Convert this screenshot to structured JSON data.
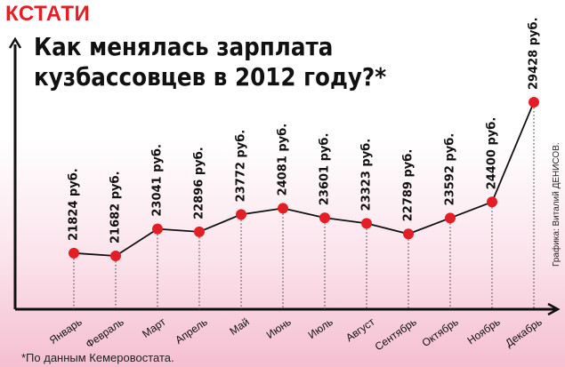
{
  "header": {
    "kicker": "КСТАТИ",
    "title_line1": "Как менялась зарплата",
    "title_line2": "кузбассовцев в 2012 году?*"
  },
  "credit": "Графика: Виталий ДЕНИСОВ.",
  "footnote": "*По данным Кемеровостата.",
  "colors": {
    "accent": "#e31e24",
    "line": "#111111",
    "background_bottom": "#f4bfd1"
  },
  "chart_data": {
    "type": "line",
    "categories": [
      "Январь",
      "Февраль",
      "Март",
      "Апрель",
      "Май",
      "Июнь",
      "Июль",
      "Август",
      "Сентябрь",
      "Октябрь",
      "Ноябрь",
      "Декабрь"
    ],
    "values": [
      21824,
      21682,
      23041,
      22896,
      23772,
      24081,
      23601,
      23323,
      22789,
      23592,
      24400,
      29428
    ],
    "value_labels": [
      "21824 руб.",
      "21682 руб.",
      "23041 руб.",
      "22896 руб.",
      "23772 руб.",
      "24081 руб.",
      "23601 руб.",
      "23323 руб.",
      "22789 руб.",
      "23592 руб.",
      "24400 руб.",
      "29428 руб."
    ],
    "grid": false,
    "legend": "none"
  }
}
